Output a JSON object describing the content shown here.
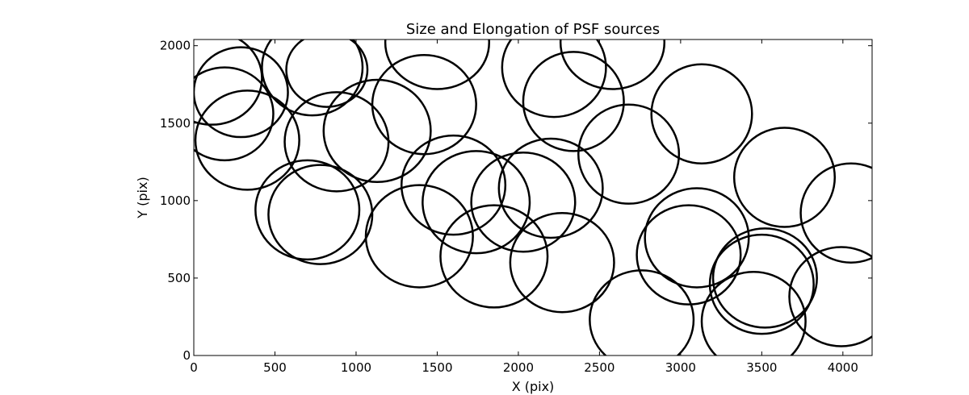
{
  "chart_data": {
    "type": "scatter",
    "title": "Size and Elongation of PSF sources",
    "xlabel": "X (pix)",
    "ylabel": "Y (pix)",
    "xlim": [
      0,
      4180
    ],
    "ylim": [
      0,
      2040
    ],
    "xticks": [
      0,
      500,
      1000,
      1500,
      2000,
      2500,
      3000,
      3500,
      4000
    ],
    "yticks": [
      0,
      500,
      1000,
      1500,
      2000
    ],
    "grid": false,
    "marker": "ellipse",
    "default_color": "#000000",
    "highlight_color": "#ff00ff",
    "sources": [
      {
        "x": 820,
        "y": 1845,
        "rx": 250,
        "ry": 240,
        "highlight": true
      },
      {
        "x": 110,
        "y": 1790,
        "rx": 310,
        "ry": 300
      },
      {
        "x": 290,
        "y": 1700,
        "rx": 290,
        "ry": 290
      },
      {
        "x": 190,
        "y": 1560,
        "rx": 300,
        "ry": 300
      },
      {
        "x": 330,
        "y": 1390,
        "rx": 320,
        "ry": 320
      },
      {
        "x": 730,
        "y": 1860,
        "rx": 310,
        "ry": 310
      },
      {
        "x": 880,
        "y": 1380,
        "rx": 320,
        "ry": 320
      },
      {
        "x": 1130,
        "y": 1450,
        "rx": 330,
        "ry": 330
      },
      {
        "x": 1500,
        "y": 2020,
        "rx": 320,
        "ry": 300
      },
      {
        "x": 1420,
        "y": 1620,
        "rx": 320,
        "ry": 320
      },
      {
        "x": 1600,
        "y": 1100,
        "rx": 320,
        "ry": 320
      },
      {
        "x": 1740,
        "y": 990,
        "rx": 330,
        "ry": 330
      },
      {
        "x": 2220,
        "y": 1860,
        "rx": 320,
        "ry": 320
      },
      {
        "x": 2580,
        "y": 2020,
        "rx": 320,
        "ry": 300
      },
      {
        "x": 2340,
        "y": 1640,
        "rx": 310,
        "ry": 320
      },
      {
        "x": 2680,
        "y": 1300,
        "rx": 310,
        "ry": 320
      },
      {
        "x": 3130,
        "y": 1560,
        "rx": 310,
        "ry": 320
      },
      {
        "x": 3640,
        "y": 1150,
        "rx": 310,
        "ry": 320
      },
      {
        "x": 4050,
        "y": 920,
        "rx": 310,
        "ry": 320
      },
      {
        "x": 700,
        "y": 940,
        "rx": 320,
        "ry": 320
      },
      {
        "x": 780,
        "y": 910,
        "rx": 320,
        "ry": 320
      },
      {
        "x": 1390,
        "y": 770,
        "rx": 330,
        "ry": 330
      },
      {
        "x": 1850,
        "y": 640,
        "rx": 330,
        "ry": 330
      },
      {
        "x": 2030,
        "y": 990,
        "rx": 320,
        "ry": 320
      },
      {
        "x": 2200,
        "y": 1080,
        "rx": 320,
        "ry": 320
      },
      {
        "x": 2270,
        "y": 600,
        "rx": 320,
        "ry": 320
      },
      {
        "x": 2760,
        "y": 230,
        "rx": 320,
        "ry": 320
      },
      {
        "x": 3100,
        "y": 760,
        "rx": 320,
        "ry": 320
      },
      {
        "x": 3050,
        "y": 650,
        "rx": 320,
        "ry": 320
      },
      {
        "x": 3520,
        "y": 500,
        "rx": 320,
        "ry": 320
      },
      {
        "x": 3450,
        "y": 220,
        "rx": 320,
        "ry": 320
      },
      {
        "x": 3990,
        "y": 380,
        "rx": 320,
        "ry": 320
      },
      {
        "x": 3500,
        "y": 460,
        "rx": 320,
        "ry": 320
      }
    ]
  }
}
